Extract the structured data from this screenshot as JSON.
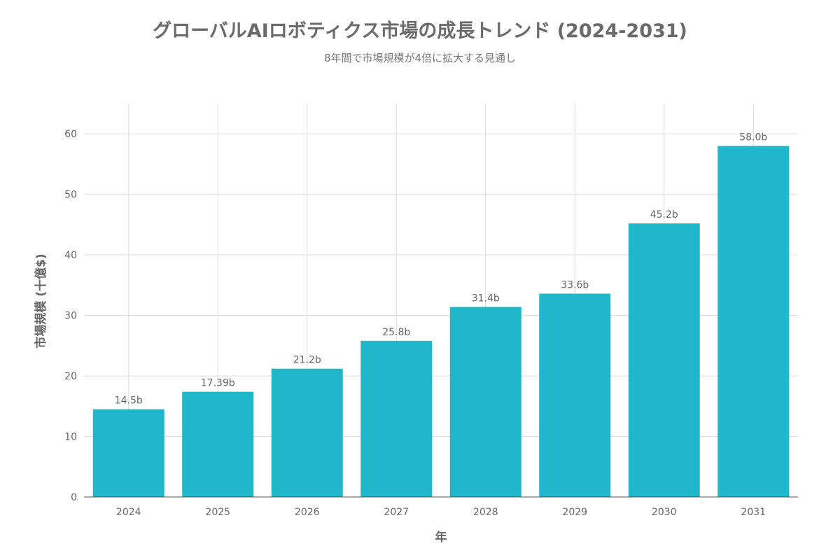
{
  "chart_data": {
    "type": "bar",
    "title": "グローバルAIロボティクス市場の成長トレンド (2024-2031)",
    "subtitle": "8年間で市場規模が4倍に拡大する見通し",
    "xlabel": "年",
    "ylabel": "市場規模 (十億$)",
    "categories": [
      "2024",
      "2025",
      "2026",
      "2027",
      "2028",
      "2029",
      "2030",
      "2031"
    ],
    "values": [
      14.5,
      17.39,
      21.2,
      25.8,
      31.4,
      33.6,
      45.2,
      58.0
    ],
    "data_labels": [
      "14.5b",
      "17.39b",
      "21.2b",
      "25.8b",
      "31.4b",
      "33.6b",
      "45.2b",
      "58.0b"
    ],
    "yticks": [
      0,
      10,
      20,
      30,
      40,
      50,
      60
    ],
    "ylim": [
      0,
      65
    ],
    "grid": true,
    "legend": "none",
    "bar_color": "#21b7cb"
  }
}
